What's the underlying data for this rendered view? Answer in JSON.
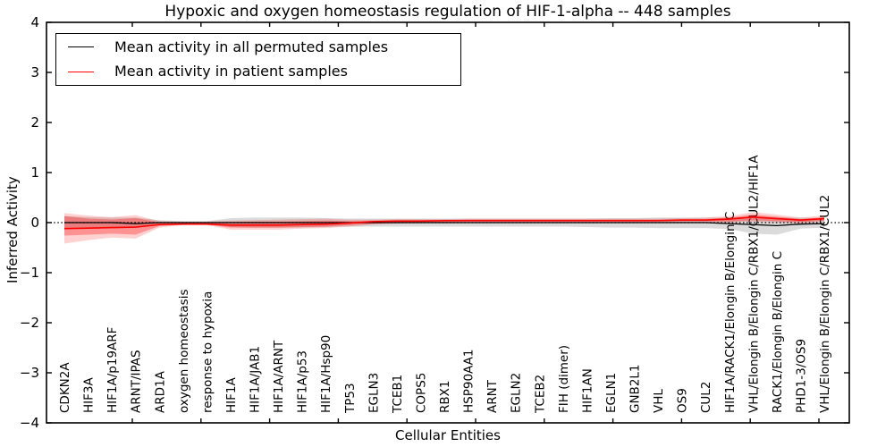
{
  "figure": {
    "title": "Hypoxic and oxygen homeostasis regulation of HIF-1-alpha -- 448 samples",
    "xlabel": "Cellular Entities",
    "ylabel": "Inferred Activity"
  },
  "legend": {
    "items": [
      {
        "label": "Mean activity in all permuted samples",
        "color": "#000000"
      },
      {
        "label": "Mean activity in patient samples",
        "color": "#ff0000"
      }
    ]
  },
  "chart_data": {
    "type": "line",
    "title": "Hypoxic and oxygen homeostasis regulation of HIF-1-alpha -- 448 samples",
    "xlabel": "Cellular Entities",
    "ylabel": "Inferred Activity",
    "ylim": [
      -4,
      4
    ],
    "ytick_labels": [
      "4",
      "3",
      "2",
      "1",
      "0",
      "−1",
      "−2",
      "−3",
      "−4"
    ],
    "ytick_values": [
      4,
      3,
      2,
      1,
      0,
      -1,
      -2,
      -3,
      -4
    ],
    "grid": false,
    "legend_position": "upper left",
    "zero_line": true,
    "categories": [
      "CDKN2A",
      "HIF3A",
      "HIF1A/p19ARF",
      "ARNT/IPAS",
      "ARD1A",
      "oxygen homeostasis",
      "response to hypoxia",
      "HIF1A",
      "HIF1A/JAB1",
      "HIF1A/ARNT",
      "HIF1A/p53",
      "HIF1A/Hsp90",
      "TP53",
      "EGLN3",
      "TCEB1",
      "COPS5",
      "RBX1",
      "HSP90AA1",
      "ARNT",
      "EGLN2",
      "TCEB2",
      "FIH (dimer)",
      "HIF1AN",
      "EGLN1",
      "GNB2L1",
      "VHL",
      "OS9",
      "CUL2",
      "HIF1A/RACK1/Elongin B/Elongin C",
      "VHL/Elongin B/Elongin C/RBX1/CUL2/HIF1A",
      "RACK1/Elongin B/Elongin C",
      "PHD1-3/OS9",
      "VHL/Elongin B/Elongin C/RBX1/CUL2"
    ],
    "series": [
      {
        "name": "Mean activity in all permuted samples",
        "color": "#000000",
        "values": [
          0,
          0,
          0,
          -0.02,
          0,
          0,
          0,
          0,
          0,
          0,
          0,
          0,
          0,
          0,
          0,
          0,
          0,
          0,
          0,
          0,
          0,
          0,
          0,
          0,
          0,
          0,
          0,
          0,
          -0.02,
          -0.04,
          -0.06,
          -0.03,
          -0.02
        ]
      },
      {
        "name": "Mean activity in patient samples",
        "color": "#ff0000",
        "values": [
          -0.12,
          -0.11,
          -0.1,
          -0.09,
          -0.04,
          -0.03,
          -0.03,
          -0.05,
          -0.05,
          -0.05,
          -0.04,
          -0.03,
          -0.01,
          0.02,
          0.03,
          0.03,
          0.04,
          0.04,
          0.04,
          0.04,
          0.04,
          0.04,
          0.04,
          0.04,
          0.04,
          0.04,
          0.05,
          0.05,
          0.07,
          0.11,
          0.08,
          0.05,
          0.08
        ]
      }
    ],
    "bands": [
      {
        "name": "permuted-samples-range",
        "color": "rgba(0,0,0,0.14)",
        "upper": [
          0.13,
          0.11,
          0.1,
          0.1,
          0.05,
          0.03,
          0.03,
          0.09,
          0.1,
          0.1,
          0.1,
          0.09,
          0.08,
          0.08,
          0.08,
          0.08,
          0.08,
          0.08,
          0.08,
          0.08,
          0.08,
          0.08,
          0.08,
          0.09,
          0.09,
          0.1,
          0.1,
          0.1,
          0.1,
          0.12,
          0.1,
          0.1,
          0.09
        ],
        "lower": [
          -0.13,
          -0.11,
          -0.1,
          -0.1,
          -0.05,
          -0.03,
          -0.03,
          -0.09,
          -0.1,
          -0.1,
          -0.1,
          -0.09,
          -0.08,
          -0.08,
          -0.08,
          -0.08,
          -0.08,
          -0.08,
          -0.08,
          -0.08,
          -0.08,
          -0.08,
          -0.09,
          -0.1,
          -0.1,
          -0.11,
          -0.11,
          -0.11,
          -0.13,
          -0.22,
          -0.24,
          -0.12,
          -0.1
        ]
      },
      {
        "name": "patient-samples-range-outer",
        "color": "rgba(255,0,0,0.18)",
        "upper": [
          0.19,
          0.14,
          0.11,
          0.15,
          0.03,
          0.02,
          0.02,
          0.04,
          0.05,
          0.06,
          0.07,
          0.08,
          0.06,
          0.06,
          0.07,
          0.07,
          0.07,
          0.08,
          0.08,
          0.08,
          0.08,
          0.08,
          0.08,
          0.08,
          0.08,
          0.08,
          0.09,
          0.1,
          0.13,
          0.21,
          0.16,
          0.1,
          0.14
        ],
        "lower": [
          -0.42,
          -0.35,
          -0.3,
          -0.32,
          -0.1,
          -0.05,
          -0.05,
          -0.14,
          -0.14,
          -0.14,
          -0.12,
          -0.11,
          -0.08,
          -0.04,
          -0.02,
          -0.01,
          -0.01,
          0.0,
          0.0,
          0.0,
          0.0,
          0.0,
          0.0,
          0.0,
          0.0,
          0.0,
          0.01,
          0.01,
          0.0,
          0.02,
          0.0,
          -0.02,
          0.02
        ]
      },
      {
        "name": "patient-samples-range-inner",
        "color": "rgba(255,0,0,0.30)",
        "upper": [
          0.13,
          0.08,
          0.06,
          0.09,
          0.01,
          0.0,
          0.0,
          0.01,
          0.02,
          0.02,
          0.03,
          0.04,
          0.03,
          0.04,
          0.05,
          0.05,
          0.05,
          0.06,
          0.06,
          0.06,
          0.06,
          0.06,
          0.06,
          0.06,
          0.06,
          0.06,
          0.07,
          0.07,
          0.1,
          0.16,
          0.12,
          0.07,
          0.11
        ],
        "lower": [
          -0.26,
          -0.24,
          -0.22,
          -0.24,
          -0.07,
          -0.04,
          -0.04,
          -0.1,
          -0.1,
          -0.1,
          -0.09,
          -0.08,
          -0.05,
          -0.02,
          0.0,
          0.01,
          0.01,
          0.02,
          0.02,
          0.02,
          0.02,
          0.02,
          0.02,
          0.02,
          0.02,
          0.02,
          0.03,
          0.03,
          0.02,
          0.05,
          0.03,
          0.01,
          0.04
        ]
      }
    ]
  }
}
